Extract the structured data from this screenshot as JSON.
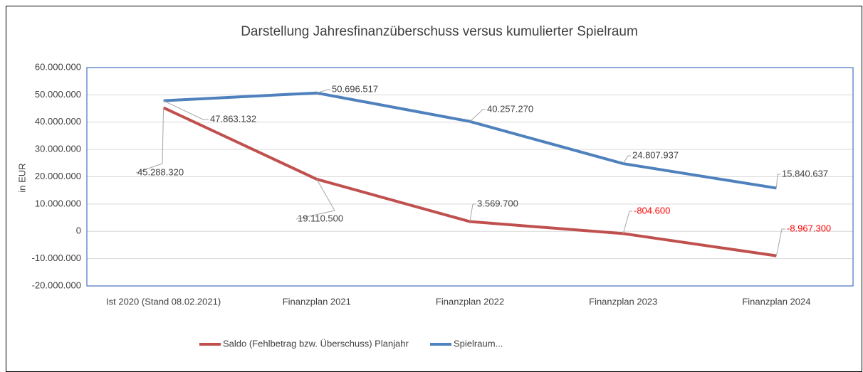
{
  "chart_data": {
    "type": "line",
    "title": "Darstellung Jahresfinanzüberschuss versus kumulierter Spielraum",
    "y_label": "in EUR",
    "categories": [
      "Ist 2020 (Stand 08.02.2021)",
      "Finanzplan 2021",
      "Finanzplan 2022",
      "Finanzplan 2023",
      "Finanzplan 2024"
    ],
    "series": [
      {
        "name": "Saldo (Fehlbetrag bzw. Überschuss) Planjahr",
        "color": "#c0504d",
        "values": [
          45288320,
          19110500,
          3569700,
          -804600,
          -8967300
        ],
        "value_labels": [
          "45.288.320",
          "19.110.500",
          "3.569.700",
          "-804.600",
          "-8.967.300"
        ]
      },
      {
        "name": "Spielraum...",
        "color": "#4f81bd",
        "values": [
          47863132,
          50696517,
          40257270,
          24807937,
          15840637
        ],
        "value_labels": [
          "47.863.132",
          "50.696.517",
          "40.257.270",
          "24.807.937",
          "15.840.637"
        ]
      }
    ],
    "negative_label_color": "#ff0000",
    "ylim": [
      -20000000,
      60000000
    ],
    "yticks": [
      {
        "value": -20000000,
        "label": "-20.000.000"
      },
      {
        "value": -10000000,
        "label": "-10.000.000"
      },
      0,
      {
        "value": 10000000,
        "label": "10.000.000"
      },
      {
        "value": 20000000,
        "label": "20.000.000"
      },
      {
        "value": 30000000,
        "label": "30.000.000"
      },
      {
        "value": 40000000,
        "label": "40.000.000"
      },
      {
        "value": 50000000,
        "label": "50.000.000"
      },
      {
        "value": 60000000,
        "label": "60.000.000"
      }
    ],
    "grid": true,
    "legend": "bottom"
  }
}
